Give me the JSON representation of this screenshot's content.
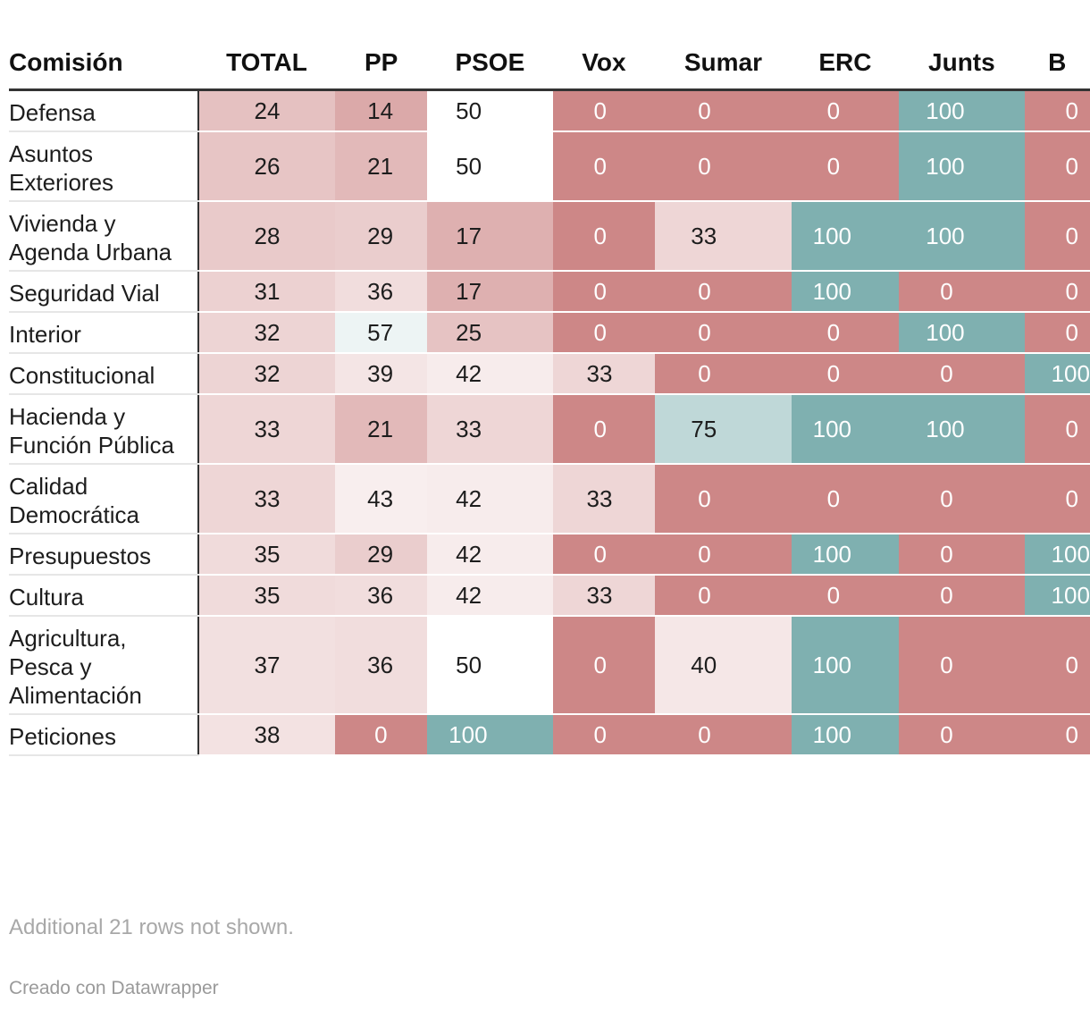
{
  "chart_data": {
    "type": "table",
    "title": "",
    "columns": [
      "Comisión",
      "TOTAL",
      "PP",
      "PSOE",
      "Vox",
      "Sumar",
      "ERC",
      "Junts",
      "B"
    ],
    "rows": [
      {
        "name": "Defensa",
        "values": [
          24,
          14,
          50,
          0,
          0,
          0,
          100,
          0
        ]
      },
      {
        "name": "Asuntos Exteriores",
        "values": [
          26,
          21,
          50,
          0,
          0,
          0,
          100,
          0
        ]
      },
      {
        "name": "Vivienda y Agenda Urbana",
        "values": [
          28,
          29,
          17,
          0,
          33,
          100,
          100,
          0
        ]
      },
      {
        "name": "Seguridad Vial",
        "values": [
          31,
          36,
          17,
          0,
          0,
          100,
          0,
          0
        ]
      },
      {
        "name": "Interior",
        "values": [
          32,
          57,
          25,
          0,
          0,
          0,
          100,
          0
        ]
      },
      {
        "name": "Constitucional",
        "values": [
          32,
          39,
          42,
          33,
          0,
          0,
          0,
          100
        ]
      },
      {
        "name": "Hacienda y Función Pública",
        "values": [
          33,
          21,
          33,
          0,
          75,
          100,
          100,
          0
        ]
      },
      {
        "name": "Calidad Democrática",
        "values": [
          33,
          43,
          42,
          33,
          0,
          0,
          0,
          0
        ]
      },
      {
        "name": "Presupuestos",
        "values": [
          35,
          29,
          42,
          0,
          0,
          100,
          0,
          100
        ]
      },
      {
        "name": "Cultura",
        "values": [
          35,
          36,
          42,
          33,
          0,
          0,
          0,
          100
        ]
      },
      {
        "name": "Agricultura, Pesca y Alimentación",
        "values": [
          37,
          36,
          50,
          0,
          40,
          100,
          0,
          0
        ]
      },
      {
        "name": "Peticiones",
        "values": [
          38,
          0,
          100,
          0,
          0,
          100,
          0,
          0
        ]
      }
    ],
    "color_scale": {
      "low_color": "#cd8787",
      "mid_color": "#ffffff",
      "high_color": "#7fb0b0",
      "domain": [
        0,
        50,
        100
      ]
    }
  },
  "footnote": "Additional 21 rows not shown.",
  "credit": "Creado con Datawrapper"
}
